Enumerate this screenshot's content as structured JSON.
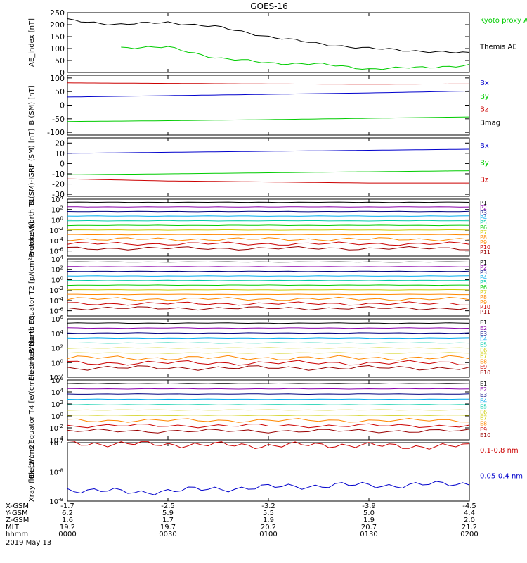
{
  "title": "GOES-16",
  "colors": {
    "black": "#000000",
    "red": "#cc0000",
    "green": "#00cc00",
    "blue": "#0000cc",
    "navy": "#000080",
    "purple": "#8800aa",
    "cyan": "#00aaee",
    "teal": "#00ccaa",
    "yellow": "#cccc00",
    "orange": "#ff8800",
    "darkred": "#990000"
  },
  "chart_data": [
    {
      "type": "line",
      "ylabel": "AE_index [nT]",
      "ylim": [
        0,
        250
      ],
      "yticks": [
        "0",
        "50",
        "100",
        "150",
        "200",
        "250"
      ],
      "x": [
        0,
        15,
        30,
        45,
        60,
        75,
        90,
        105,
        120
      ],
      "series": [
        {
          "name": "Kyoto proxy AE",
          "color": "#00cc00",
          "values": [
            null,
            105,
            105,
            60,
            40,
            35,
            15,
            20,
            30
          ]
        },
        {
          "name": "Themis AE",
          "color": "#000000",
          "values": [
            220,
            200,
            210,
            190,
            150,
            120,
            100,
            90,
            80
          ]
        }
      ]
    },
    {
      "type": "line",
      "ylabel": "B (SM) [nT]",
      "ylim": [
        -110,
        110
      ],
      "yticks": [
        "100",
        "50",
        "0",
        "-50",
        "-100"
      ],
      "x": [
        0,
        30,
        60,
        90,
        120
      ],
      "series": [
        {
          "name": "Bx",
          "color": "#0000cc",
          "values": [
            30,
            35,
            40,
            45,
            52
          ]
        },
        {
          "name": "By",
          "color": "#00cc00",
          "values": [
            -60,
            -57,
            -53,
            -48,
            -43
          ]
        },
        {
          "name": "Bz",
          "color": "#cc0000",
          "values": [
            82,
            80,
            78,
            77,
            78
          ]
        },
        {
          "name": "Bmag",
          "color": "#000000",
          "values": [
            null,
            null,
            null,
            null,
            100
          ]
        }
      ]
    },
    {
      "type": "line",
      "ylabel": "B (SM)-IGRF (SM) [nT]",
      "ylim": [
        -32,
        25
      ],
      "yticks": [
        "20",
        "10",
        "0",
        "-10",
        "-20",
        "-30"
      ],
      "x": [
        0,
        30,
        60,
        90,
        120
      ],
      "series": [
        {
          "name": "Bx",
          "color": "#0000cc",
          "values": [
            10,
            11,
            12,
            13,
            14
          ]
        },
        {
          "name": "By",
          "color": "#00cc00",
          "values": [
            -11,
            -10,
            -9,
            -8,
            -7
          ]
        },
        {
          "name": "Bz",
          "color": "#cc0000",
          "values": [
            -15,
            -17,
            -18,
            -19,
            -19
          ]
        }
      ]
    },
    {
      "type": "line",
      "ylabel": "Protons North T1",
      "scale": "log",
      "ylim": [
        -7,
        4
      ],
      "yticks": [
        "10^4",
        "10^2",
        "10^0",
        "10^-2",
        "10^-4",
        "10^-6"
      ],
      "legend": [
        "P1",
        "P2",
        "P3",
        "P4",
        "P5",
        "P6",
        "P7",
        "P8",
        "P9",
        "P10",
        "P11"
      ]
    },
    {
      "type": "line",
      "ylabel": "Protons Equator T2 [p/(cm²-s-sr-keV)]",
      "scale": "log",
      "ylim": [
        -7,
        4
      ],
      "yticks": [
        "10^4",
        "10^2",
        "10^0",
        "10^-2",
        "10^-4",
        "10^-6"
      ],
      "legend": [
        "P1",
        "P2",
        "P3",
        "P4",
        "P5",
        "P6",
        "P7",
        "P8",
        "P9",
        "P10",
        "P11"
      ]
    },
    {
      "type": "line",
      "ylabel": "Electrons North T3",
      "scale": "log",
      "ylim": [
        -2,
        6
      ],
      "yticks": [
        "10^6",
        "10^4",
        "10^2",
        "10^0",
        "10^-2"
      ],
      "legend": [
        "E1",
        "E2",
        "E3",
        "E4",
        "E5",
        "E6",
        "E7",
        "E8",
        "E9",
        "E10"
      ]
    },
    {
      "type": "line",
      "ylabel": "Electrons Equator T4 [e/(cm²-s-sr-keV)]",
      "scale": "log",
      "ylim": [
        -4,
        6
      ],
      "yticks": [
        "10^6",
        "10^4",
        "10^2",
        "10^0",
        "10^-2",
        "10^-4"
      ],
      "legend": [
        "E1",
        "E2",
        "E3",
        "E4",
        "E5",
        "E6",
        "E7",
        "E8",
        "E9",
        "E10"
      ]
    },
    {
      "type": "line",
      "ylabel": "Xray flux [W/m2]",
      "scale": "log",
      "ylim": [
        -9,
        -7
      ],
      "yticks": [
        "10^-7",
        "10^-8",
        "10^-9"
      ],
      "series": [
        {
          "name": "0.1-0.8 nm",
          "color": "#cc0000",
          "values": [
            9.5e-08,
            9e-08,
            8.5e-08,
            8e-08,
            8.5e-08,
            7.5e-08,
            7.5e-08
          ]
        },
        {
          "name": "0.05-0.4 nm",
          "color": "#0000cc",
          "values": [
            2.5e-09,
            2e-09,
            2.5e-09,
            3e-09,
            3.5e-09,
            3.5e-09,
            4e-09
          ]
        }
      ]
    }
  ],
  "axis": {
    "labels": [
      "X-GSM",
      "Y-GSM",
      "Z-GSM",
      "MLT",
      "hhmm"
    ],
    "date": "2019 May 13",
    "ticks": [
      {
        "values": [
          "-1.7",
          "6.2",
          "1.6",
          "19.2",
          "0000"
        ]
      },
      {
        "values": [
          "-2.5",
          "5.9",
          "1.7",
          "19.7",
          "0030"
        ]
      },
      {
        "values": [
          "-3.2",
          "5.5",
          "1.9",
          "20.2",
          "0100"
        ]
      },
      {
        "values": [
          "-3.9",
          "5.0",
          "1.9",
          "20.7",
          "0130"
        ]
      },
      {
        "values": [
          "-4.5",
          "4.4",
          "2.0",
          "21.2",
          "0200"
        ]
      }
    ]
  }
}
